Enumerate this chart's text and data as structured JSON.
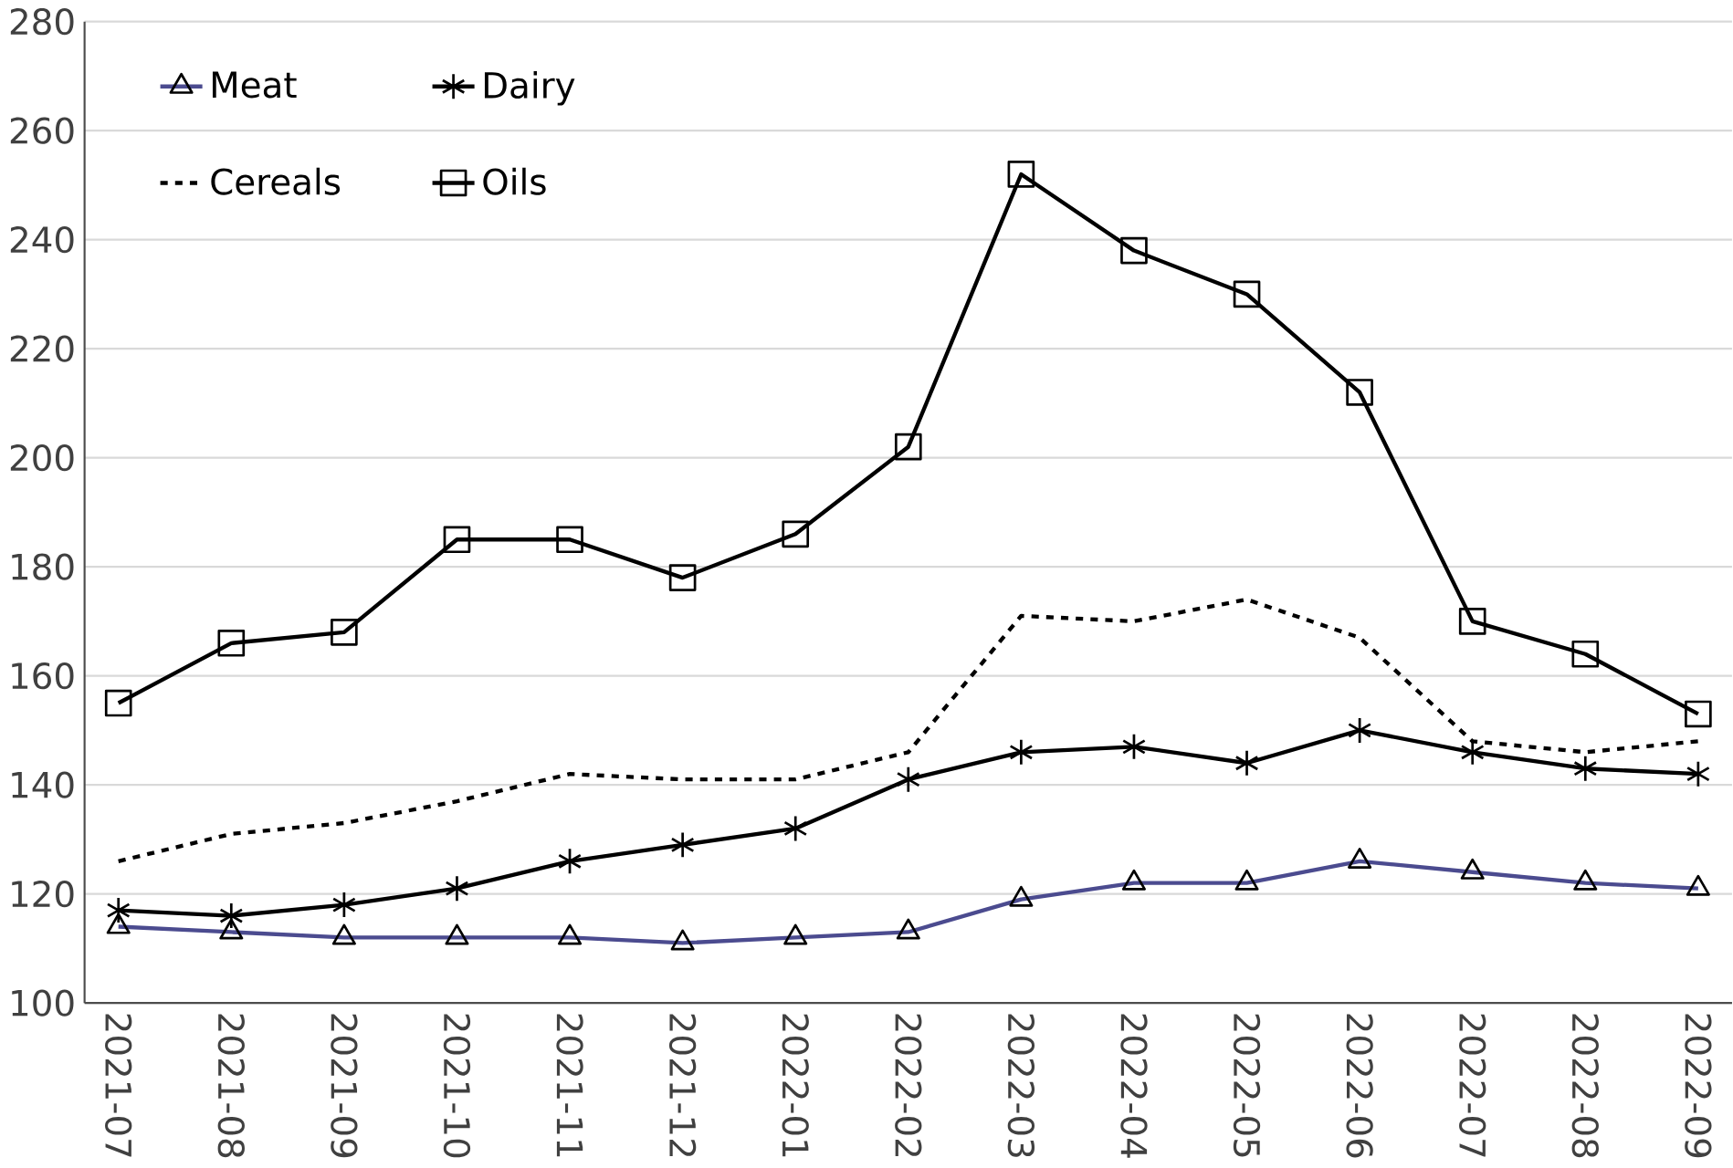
{
  "chart_data": {
    "type": "line",
    "categories": [
      "2021-07",
      "2021-08",
      "2021-09",
      "2021-10",
      "2021-11",
      "2021-12",
      "2022-01",
      "2022-02",
      "2022-03",
      "2022-04",
      "2022-05",
      "2022-06",
      "2022-07",
      "2022-08",
      "2022-09"
    ],
    "series": [
      {
        "name": "Meat",
        "color": "#4b4b8f",
        "marker": "triangle",
        "line_style": "solid",
        "values": [
          114,
          113,
          112,
          112,
          112,
          111,
          112,
          113,
          119,
          122,
          122,
          126,
          124,
          122,
          121
        ]
      },
      {
        "name": "Dairy",
        "color": "#000000",
        "marker": "cross",
        "line_style": "solid",
        "values": [
          117,
          116,
          118,
          121,
          126,
          129,
          132,
          141,
          146,
          147,
          144,
          150,
          146,
          143,
          142
        ]
      },
      {
        "name": "Cereals",
        "color": "#000000",
        "marker": "none",
        "line_style": "dashed",
        "values": [
          126,
          131,
          133,
          137,
          142,
          141,
          141,
          146,
          171,
          170,
          174,
          167,
          148,
          146,
          148
        ]
      },
      {
        "name": "Oils",
        "color": "#000000",
        "marker": "square",
        "line_style": "solid",
        "values": [
          155,
          166,
          168,
          185,
          185,
          178,
          186,
          202,
          252,
          238,
          230,
          212,
          170,
          164,
          153
        ]
      }
    ],
    "ylim": [
      100,
      280
    ],
    "yticks": [
      100,
      120,
      140,
      160,
      180,
      200,
      220,
      240,
      260,
      280
    ],
    "grid": "y",
    "legend": "top left"
  }
}
